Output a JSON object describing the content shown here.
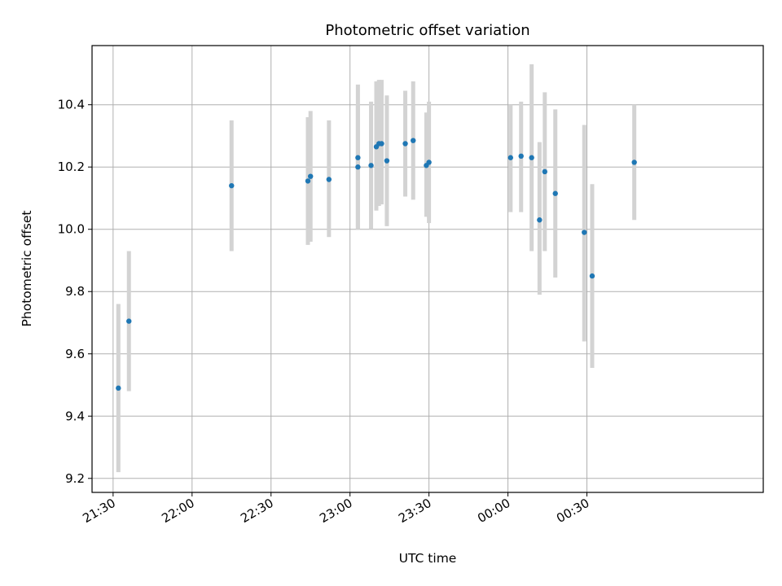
{
  "chart_data": {
    "type": "scatter",
    "title": "Photometric offset variation",
    "xlabel": "UTC time",
    "ylabel": "Photometric offset",
    "grid": true,
    "xlim": [
      "21:22",
      "01:37"
    ],
    "ylim": [
      9.155,
      10.59
    ],
    "x_ticks": [
      "21:30",
      "22:00",
      "22:30",
      "23:00",
      "23:30",
      "00:00",
      "00:30"
    ],
    "y_ticks": [
      "9.2",
      "9.4",
      "9.6",
      "9.8",
      "10.0",
      "10.2",
      "10.4"
    ],
    "colors": {
      "points": "#1f77b4",
      "errorbars": "#d3d3d3",
      "grid": "#b0b0b0"
    },
    "points": [
      {
        "x": "21:32",
        "y": 9.49,
        "ylow": 9.22,
        "yhigh": 9.76
      },
      {
        "x": "21:36",
        "y": 9.705,
        "ylow": 9.48,
        "yhigh": 9.93
      },
      {
        "x": "22:15",
        "y": 10.14,
        "ylow": 9.93,
        "yhigh": 10.35
      },
      {
        "x": "22:44",
        "y": 10.155,
        "ylow": 9.95,
        "yhigh": 10.36
      },
      {
        "x": "22:45",
        "y": 10.17,
        "ylow": 9.96,
        "yhigh": 10.38
      },
      {
        "x": "22:52",
        "y": 10.16,
        "ylow": 9.975,
        "yhigh": 10.35
      },
      {
        "x": "23:03",
        "y": 10.2,
        "ylow": 10.0,
        "yhigh": 10.4
      },
      {
        "x": "23:03",
        "y": 10.23,
        "ylow": 10.0,
        "yhigh": 10.465
      },
      {
        "x": "23:08",
        "y": 10.205,
        "ylow": 10.0,
        "yhigh": 10.41
      },
      {
        "x": "23:10",
        "y": 10.265,
        "ylow": 10.06,
        "yhigh": 10.475
      },
      {
        "x": "23:11",
        "y": 10.275,
        "ylow": 10.075,
        "yhigh": 10.48
      },
      {
        "x": "23:12",
        "y": 10.275,
        "ylow": 10.08,
        "yhigh": 10.48
      },
      {
        "x": "23:14",
        "y": 10.22,
        "ylow": 10.01,
        "yhigh": 10.43
      },
      {
        "x": "23:21",
        "y": 10.275,
        "ylow": 10.105,
        "yhigh": 10.445
      },
      {
        "x": "23:24",
        "y": 10.285,
        "ylow": 10.095,
        "yhigh": 10.475
      },
      {
        "x": "23:29",
        "y": 10.205,
        "ylow": 10.04,
        "yhigh": 10.375
      },
      {
        "x": "23:30",
        "y": 10.215,
        "ylow": 10.02,
        "yhigh": 10.41
      },
      {
        "x": "00:01",
        "y": 10.23,
        "ylow": 10.055,
        "yhigh": 10.4
      },
      {
        "x": "00:05",
        "y": 10.235,
        "ylow": 10.055,
        "yhigh": 10.41
      },
      {
        "x": "00:09",
        "y": 10.23,
        "ylow": 9.93,
        "yhigh": 10.53
      },
      {
        "x": "00:12",
        "y": 10.03,
        "ylow": 9.79,
        "yhigh": 10.28
      },
      {
        "x": "00:14",
        "y": 10.185,
        "ylow": 9.93,
        "yhigh": 10.44
      },
      {
        "x": "00:18",
        "y": 10.115,
        "ylow": 9.845,
        "yhigh": 10.385
      },
      {
        "x": "00:29",
        "y": 9.99,
        "ylow": 9.64,
        "yhigh": 10.335
      },
      {
        "x": "00:32",
        "y": 9.85,
        "ylow": 9.555,
        "yhigh": 10.145
      },
      {
        "x": "00:48",
        "y": 10.215,
        "ylow": 10.03,
        "yhigh": 10.4
      }
    ]
  }
}
